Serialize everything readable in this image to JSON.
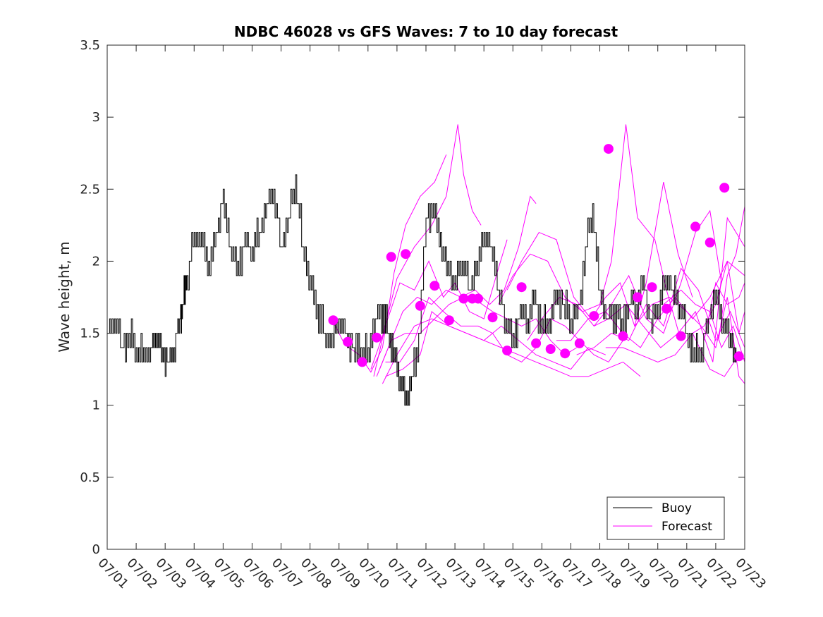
{
  "chart_data": {
    "type": "line",
    "title": "NDBC 46028 vs GFS Waves: 7 to 10 day forecast",
    "xlabel": "",
    "ylabel": "Wave height, m",
    "xlim_days": [
      0,
      22
    ],
    "ylim": [
      0,
      3.5
    ],
    "yticks": [
      0,
      0.5,
      1,
      1.5,
      2,
      2.5,
      3,
      3.5
    ],
    "ytick_labels": [
      "0",
      "0.5",
      "1",
      "1.5",
      "2",
      "2.5",
      "3",
      "3.5"
    ],
    "xtick_labels": [
      "07/01",
      "07/02",
      "07/03",
      "07/04",
      "07/05",
      "07/06",
      "07/07",
      "07/08",
      "07/09",
      "07/10",
      "07/11",
      "07/12",
      "07/13",
      "07/14",
      "07/15",
      "07/16",
      "07/17",
      "07/18",
      "07/19",
      "07/20",
      "07/21",
      "07/22",
      "07/23"
    ],
    "grid": false,
    "legend": {
      "location": "bottom-right",
      "entries": [
        {
          "name": "Buoy",
          "color": "#000000"
        },
        {
          "name": "Forecast",
          "color": "#ff00ff"
        }
      ]
    },
    "series": [
      {
        "name": "Buoy",
        "color": "#000000",
        "x": [
          0,
          0.25,
          0.5,
          0.75,
          1,
          1.25,
          1.5,
          1.7,
          1.9,
          2.1,
          2.3,
          2.5,
          2.6,
          2.75,
          3,
          3.25,
          3.5,
          3.75,
          4,
          4.25,
          4.5,
          4.75,
          5,
          5.25,
          5.5,
          5.75,
          6,
          6.25,
          6.5,
          6.75,
          7,
          7.25,
          7.5,
          7.75,
          8,
          8.25,
          8.5,
          8.75,
          9,
          9.25,
          9.5,
          9.7,
          9.9,
          10.1,
          10.3,
          10.5,
          10.75,
          11,
          11.25,
          11.5,
          11.75,
          12,
          12.25,
          12.5,
          12.75,
          13,
          13.25,
          13.5,
          13.75,
          14,
          14.25,
          14.5,
          14.75,
          15,
          15.25,
          15.5,
          15.75,
          16,
          16.25,
          16.5,
          16.75,
          17,
          17.25,
          17.5,
          17.75,
          18,
          18.25,
          18.5,
          18.75,
          19,
          19.25,
          19.5,
          19.75,
          20,
          20.25,
          20.5,
          20.75,
          21,
          21.25,
          21.5,
          21.7
        ],
        "values": [
          1.5,
          1.6,
          1.4,
          1.5,
          1.4,
          1.35,
          1.4,
          1.5,
          1.35,
          1.3,
          1.4,
          1.6,
          1.7,
          1.9,
          2.15,
          2.2,
          1.95,
          2.2,
          2.45,
          2.1,
          1.95,
          2.15,
          2.05,
          2.2,
          2.4,
          2.5,
          2.1,
          2.3,
          2.55,
          2.1,
          1.85,
          1.65,
          1.5,
          1.45,
          1.6,
          1.5,
          1.4,
          1.4,
          1.35,
          1.6,
          1.65,
          1.5,
          1.35,
          1.2,
          1.05,
          1.15,
          1.45,
          2.3,
          2.4,
          2.15,
          1.95,
          1.85,
          2.0,
          1.8,
          1.95,
          2.2,
          2.1,
          1.8,
          1.6,
          1.45,
          1.65,
          1.6,
          1.75,
          1.55,
          1.6,
          1.75,
          1.7,
          1.6,
          1.65,
          2.05,
          2.35,
          1.8,
          1.6,
          1.65,
          1.55,
          1.7,
          1.7,
          1.85,
          1.55,
          1.7,
          1.9,
          1.8,
          1.7,
          1.5,
          1.35,
          1.4,
          1.6,
          1.75,
          1.6,
          1.45,
          1.35
        ]
      },
      {
        "name": "Forecast",
        "color": "#ff00ff",
        "lines": [
          {
            "x": [
              7.75,
              8.2,
              8.7,
              9.1,
              9.5,
              9.9,
              10.3,
              10.8,
              11.3,
              11.7
            ],
            "values": [
              1.6,
              1.42,
              1.35,
              1.23,
              1.4,
              1.92,
              2.25,
              2.45,
              2.55,
              2.74
            ]
          },
          {
            "x": [
              9.1,
              9.5,
              10.0,
              10.6,
              11.2,
              11.7,
              12.1,
              12.3,
              12.6,
              12.9
            ],
            "values": [
              1.25,
              1.48,
              1.88,
              2.1,
              2.25,
              2.45,
              2.95,
              2.6,
              2.35,
              2.25
            ]
          },
          {
            "x": [
              9.2,
              9.6,
              10.1,
              10.6,
              11.1,
              11.6,
              12.0,
              12.5,
              13.0,
              13.5,
              13.8
            ],
            "values": [
              1.2,
              1.55,
              1.85,
              1.8,
              2.0,
              1.75,
              1.85,
              1.65,
              1.6,
              1.95,
              2.15
            ]
          },
          {
            "x": [
              9.3,
              9.7,
              10.2,
              10.7,
              11.2,
              11.7,
              12.2,
              12.7,
              13.2,
              13.7,
              14.2,
              14.6,
              14.8
            ],
            "values": [
              1.2,
              1.4,
              1.65,
              1.75,
              1.7,
              1.8,
              1.75,
              1.8,
              1.7,
              1.8,
              2.1,
              2.45,
              2.4
            ]
          },
          {
            "x": [
              9.4,
              9.8,
              10.3,
              10.8,
              11.3,
              11.8,
              12.3,
              12.8,
              13.3,
              13.8,
              14.3,
              14.8,
              15.3,
              15.8,
              16.2
            ],
            "values": [
              1.25,
              1.45,
              1.5,
              1.5,
              1.6,
              1.7,
              1.75,
              1.72,
              1.65,
              1.6,
              1.55,
              1.6,
              1.45,
              1.35,
              1.4
            ]
          },
          {
            "x": [
              9.5,
              10.0,
              10.6,
              11.2,
              11.8,
              12.4,
              13.0,
              13.6,
              14.2,
              14.8,
              15.4,
              16.0,
              16.6,
              17.2
            ],
            "values": [
              1.15,
              1.35,
              1.55,
              1.6,
              1.55,
              1.5,
              1.45,
              1.55,
              1.45,
              1.35,
              1.3,
              1.25,
              1.4,
              1.35
            ]
          },
          {
            "x": [
              9.6,
              10.1,
              10.6,
              11.1,
              11.6,
              12.2,
              12.8,
              13.3,
              13.8,
              14.3,
              14.8,
              15.3,
              15.8,
              16.3,
              16.8,
              17.3,
              17.8
            ],
            "values": [
              1.3,
              1.3,
              1.45,
              1.75,
              1.65,
              1.55,
              1.55,
              1.5,
              1.35,
              1.3,
              1.4,
              1.6,
              1.55,
              1.45,
              1.35,
              1.3,
              1.45
            ]
          },
          {
            "x": [
              9.6,
              10.2,
              10.8,
              11.2,
              11.8,
              12.4,
              13.0,
              13.6,
              14.2,
              14.8,
              15.4,
              16.0,
              16.6,
              17.2,
              17.8,
              18.4
            ],
            "values": [
              1.2,
              1.25,
              1.35,
              1.65,
              1.55,
              1.5,
              1.45,
              1.4,
              1.35,
              1.3,
              1.25,
              1.2,
              1.2,
              1.25,
              1.3,
              1.2
            ]
          },
          {
            "x": [
              13.5,
              14.0,
              14.6,
              15.2,
              15.8,
              16.4,
              17.0,
              17.4,
              17.9,
              18.3,
              18.9,
              19.3,
              19.8
            ],
            "values": [
              1.7,
              1.9,
              2.05,
              2.0,
              1.75,
              1.65,
              1.7,
              2.0,
              2.95,
              2.3,
              2.15,
              1.8,
              1.45
            ]
          },
          {
            "x": [
              13.8,
              14.3,
              14.9,
              15.5,
              16.1,
              16.7,
              17.2,
              17.7,
              18.2,
              18.6,
              19.2,
              19.7,
              20.2
            ],
            "values": [
              1.8,
              2.0,
              2.2,
              2.15,
              1.75,
              1.6,
              1.75,
              1.85,
              1.55,
              1.85,
              2.55,
              2.05,
              1.75
            ]
          },
          {
            "x": [
              14.5,
              15.0,
              15.6,
              16.2,
              16.8,
              17.4,
              18.0,
              18.6,
              19.2,
              19.8,
              20.3,
              20.8,
              21.2
            ],
            "values": [
              1.45,
              1.6,
              1.75,
              1.7,
              1.55,
              1.7,
              1.9,
              1.6,
              1.5,
              1.85,
              2.2,
              2.35,
              1.85
            ]
          },
          {
            "x": [
              15.5,
              16.0,
              16.6,
              17.2,
              17.8,
              18.4,
              19.0,
              19.6,
              20.2,
              20.8,
              21.4,
              22.0
            ],
            "values": [
              1.45,
              1.45,
              1.6,
              1.65,
              1.5,
              1.4,
              1.6,
              1.75,
              1.6,
              1.75,
              2.0,
              1.9
            ]
          },
          {
            "x": [
              16.2,
              16.8,
              17.4,
              18.0,
              18.6,
              19.2,
              19.8,
              20.4,
              21.0,
              21.5,
              22.0
            ],
            "values": [
              1.35,
              1.4,
              1.5,
              1.45,
              1.7,
              1.55,
              1.95,
              1.8,
              1.45,
              1.65,
              1.4
            ]
          },
          {
            "x": [
              16.8,
              17.3,
              17.9,
              18.5,
              19.1,
              19.7,
              20.3,
              20.9,
              21.4,
              22.0
            ],
            "values": [
              1.55,
              1.6,
              1.7,
              1.55,
              1.4,
              1.5,
              1.65,
              1.3,
              2.3,
              2.1
            ]
          },
          {
            "x": [
              17.2,
              17.8,
              18.4,
              19.0,
              19.6,
              20.2,
              20.8,
              21.3,
              21.8,
              22.0
            ],
            "values": [
              1.4,
              1.4,
              1.35,
              1.3,
              1.35,
              1.5,
              1.25,
              1.2,
              1.35,
              1.32
            ]
          },
          {
            "x": [
              18.2,
              18.8,
              19.4,
              20.0,
              20.5,
              21.0,
              21.4,
              21.8,
              22.0
            ],
            "values": [
              1.55,
              1.7,
              1.75,
              1.65,
              1.55,
              1.4,
              1.75,
              1.2,
              1.15
            ]
          },
          {
            "x": [
              19.2,
              19.8,
              20.3,
              20.8,
              21.2,
              21.6,
              22.0
            ],
            "values": [
              1.7,
              1.8,
              1.7,
              1.65,
              1.4,
              1.55,
              1.3
            ]
          },
          {
            "x": [
              20.2,
              20.6,
              21.0,
              21.4,
              21.8,
              22.0
            ],
            "values": [
              1.5,
              1.55,
              1.7,
              2.0,
              1.5,
              1.65
            ]
          },
          {
            "x": [
              20.6,
              21.0,
              21.4,
              21.8,
              22.0
            ],
            "values": [
              1.45,
              1.85,
              1.7,
              1.75,
              1.85
            ]
          },
          {
            "x": [
              21.1,
              21.4,
              21.7,
              22.0
            ],
            "values": [
              1.45,
              1.9,
              2.05,
              2.38
            ]
          }
        ],
        "markers": {
          "x": [
            7.8,
            8.3,
            8.8,
            9.3,
            9.8,
            10.3,
            10.8,
            11.3,
            11.8,
            12.3,
            12.6,
            12.8,
            13.3,
            13.8,
            14.3,
            14.8,
            15.3,
            15.8,
            16.3,
            16.8,
            17.3,
            17.8,
            18.3,
            18.8,
            19.3,
            19.8,
            20.3,
            20.8,
            21.3,
            21.8
          ],
          "values": [
            1.59,
            1.44,
            1.3,
            1.47,
            2.03,
            2.05,
            1.69,
            1.83,
            1.59,
            1.74,
            1.74,
            1.74,
            1.61,
            1.38,
            1.82,
            1.43,
            1.39,
            1.36,
            1.43,
            1.62,
            2.78,
            1.48,
            1.75,
            1.82,
            1.67,
            1.48,
            2.24,
            2.13,
            2.51,
            1.34
          ]
        }
      }
    ]
  }
}
